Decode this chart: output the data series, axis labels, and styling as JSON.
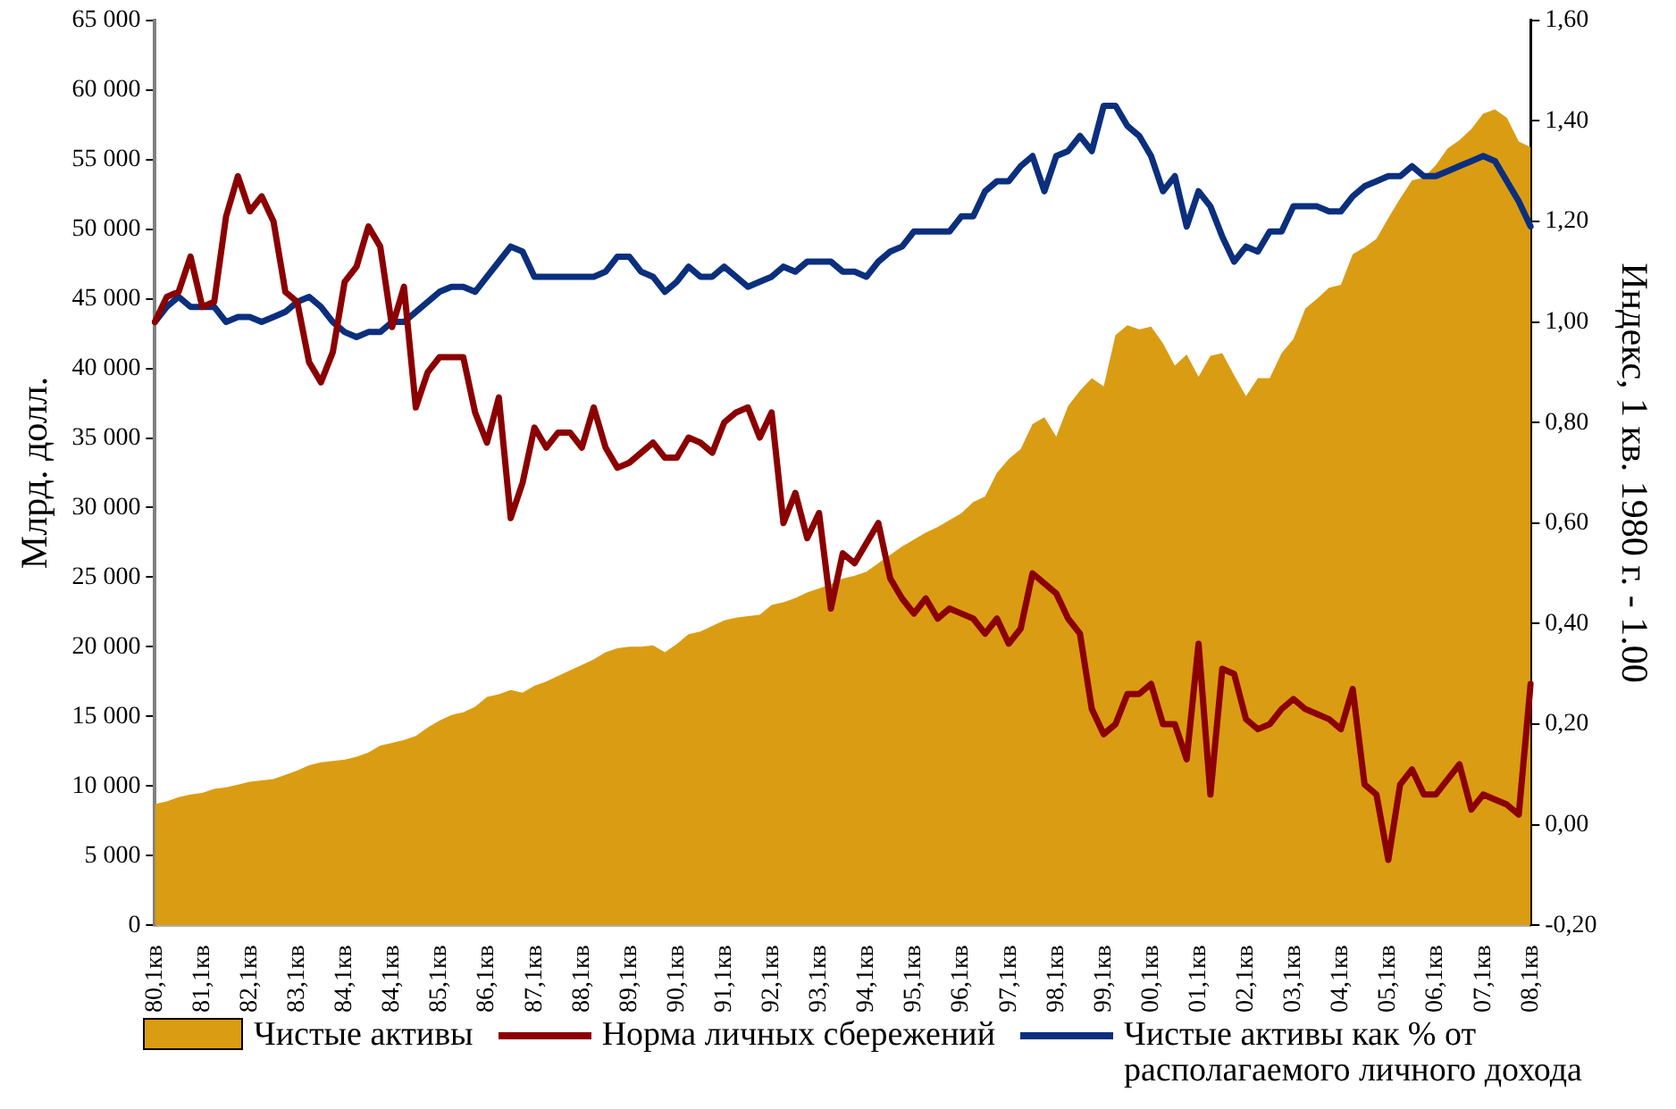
{
  "chart_data": {
    "type": "area",
    "ylabel": "Млрд. долл.",
    "y2label": "Индекс, 1 кв. 1980 г. - 1.00",
    "categories": [
      "80,1кв",
      null,
      null,
      null,
      "81,1кв",
      null,
      null,
      null,
      "82,1кв",
      null,
      null,
      null,
      "83,1кв",
      null,
      null,
      null,
      "84,1кв",
      null,
      null,
      null,
      "84,1кв",
      null,
      null,
      null,
      "85,1кв",
      null,
      null,
      null,
      "86,1кв",
      null,
      null,
      null,
      "87,1кв",
      null,
      null,
      null,
      "88,1кв",
      null,
      null,
      null,
      "89,1кв",
      null,
      null,
      null,
      "90,1кв",
      null,
      null,
      null,
      "91,1кв",
      null,
      null,
      null,
      "92,1кв",
      null,
      null,
      null,
      "93,1кв",
      null,
      null,
      null,
      "94,1кв",
      null,
      null,
      null,
      "95,1кв",
      null,
      null,
      null,
      "96,1кв",
      null,
      null,
      null,
      "97,1кв",
      null,
      null,
      null,
      "98,1кв",
      null,
      null,
      null,
      "99,1кв",
      null,
      null,
      null,
      "00,1кв",
      null,
      null,
      null,
      "01,1кв",
      null,
      null,
      null,
      "02,1кв",
      null,
      null,
      null,
      "03,1кв",
      null,
      null,
      null,
      "04,1кв",
      null,
      null,
      null,
      "05,1кв",
      null,
      null,
      null,
      "06,1кв",
      null,
      null,
      null,
      "07,1кв",
      null,
      null,
      null,
      "08,1кв"
    ],
    "series": [
      {
        "name": "Чистые активы",
        "color": "#da9c12",
        "values": [
          8700,
          8900,
          9200,
          9400,
          9500,
          9800,
          9900,
          10100,
          10300,
          10400,
          10500,
          10800,
          11100,
          11500,
          11700,
          11800,
          11900,
          12100,
          12400,
          12900,
          13100,
          13300,
          13600,
          14200,
          14700,
          15100,
          15300,
          15700,
          16400,
          16600,
          16900,
          16700,
          17200,
          17500,
          17900,
          18300,
          18700,
          19100,
          19600,
          19900,
          20000,
          20000,
          20100,
          19600,
          20200,
          20900,
          21100,
          21500,
          21900,
          22100,
          22200,
          22300,
          23000,
          23200,
          23500,
          23900,
          24200,
          24500,
          24900,
          25100,
          25400,
          26000,
          26600,
          27200,
          27700,
          28200,
          28600,
          29100,
          29600,
          30400,
          30800,
          32500,
          33500,
          34200,
          36000,
          36500,
          35100,
          37300,
          38400,
          39300,
          38700,
          42400,
          43100,
          42800,
          43000,
          41800,
          40200,
          41000,
          39400,
          40900,
          41100,
          39500,
          38000,
          39300,
          39300,
          41100,
          42100,
          44300,
          45000,
          45800,
          46000,
          48200,
          48700,
          49300,
          50800,
          52200,
          53500,
          53700,
          54600,
          55800,
          56400,
          57200,
          58300,
          58600,
          58000,
          56300,
          55900
        ]
      },
      {
        "name": "Норма личных сбережений",
        "type": "line",
        "axis": "y2",
        "color": "#8b0000",
        "values": [
          1.0,
          1.05,
          1.06,
          1.13,
          1.03,
          1.04,
          1.21,
          1.29,
          1.22,
          1.25,
          1.2,
          1.06,
          1.04,
          0.92,
          0.88,
          0.94,
          1.08,
          1.11,
          1.19,
          1.15,
          0.99,
          1.07,
          0.83,
          0.9,
          0.93,
          0.93,
          0.93,
          0.82,
          0.76,
          0.85,
          0.61,
          0.68,
          0.79,
          0.75,
          0.78,
          0.78,
          0.75,
          0.83,
          0.75,
          0.71,
          0.72,
          0.74,
          0.76,
          0.73,
          0.73,
          0.77,
          0.76,
          0.74,
          0.8,
          0.82,
          0.83,
          0.77,
          0.82,
          0.6,
          0.66,
          0.57,
          0.62,
          0.43,
          0.54,
          0.52,
          0.56,
          0.6,
          0.49,
          0.45,
          0.42,
          0.45,
          0.41,
          0.43,
          0.42,
          0.41,
          0.38,
          0.41,
          0.36,
          0.39,
          0.5,
          0.48,
          0.46,
          0.41,
          0.38,
          0.23,
          0.18,
          0.2,
          0.26,
          0.26,
          0.28,
          0.2,
          0.2,
          0.13,
          0.36,
          0.06,
          0.31,
          0.3,
          0.21,
          0.19,
          0.2,
          0.23,
          0.25,
          0.23,
          0.22,
          0.21,
          0.19,
          0.27,
          0.08,
          0.06,
          -0.07,
          0.08,
          0.11,
          0.06,
          0.06,
          0.09,
          0.12,
          0.03,
          0.06,
          0.05,
          0.04,
          0.02,
          0.28
        ]
      },
      {
        "name": "Чистые активы как % от располагаемого личного дохода",
        "type": "line",
        "axis": "y2",
        "color": "#0b2f7d",
        "values": [
          1.0,
          1.03,
          1.05,
          1.03,
          1.03,
          1.03,
          1.0,
          1.01,
          1.01,
          1.0,
          1.01,
          1.02,
          1.04,
          1.05,
          1.03,
          1.0,
          0.98,
          0.97,
          0.98,
          0.98,
          1.0,
          1.0,
          1.02,
          1.04,
          1.06,
          1.07,
          1.07,
          1.06,
          1.09,
          1.12,
          1.15,
          1.14,
          1.09,
          1.09,
          1.09,
          1.09,
          1.09,
          1.09,
          1.1,
          1.13,
          1.13,
          1.1,
          1.09,
          1.06,
          1.08,
          1.11,
          1.09,
          1.09,
          1.11,
          1.09,
          1.07,
          1.08,
          1.09,
          1.11,
          1.1,
          1.12,
          1.12,
          1.12,
          1.1,
          1.1,
          1.09,
          1.12,
          1.14,
          1.15,
          1.18,
          1.18,
          1.18,
          1.18,
          1.21,
          1.21,
          1.26,
          1.28,
          1.28,
          1.31,
          1.33,
          1.26,
          1.33,
          1.34,
          1.37,
          1.34,
          1.43,
          1.43,
          1.39,
          1.37,
          1.33,
          1.26,
          1.29,
          1.19,
          1.26,
          1.23,
          1.17,
          1.12,
          1.15,
          1.14,
          1.18,
          1.18,
          1.23,
          1.23,
          1.23,
          1.22,
          1.22,
          1.25,
          1.27,
          1.28,
          1.29,
          1.29,
          1.31,
          1.29,
          1.29,
          1.3,
          1.31,
          1.32,
          1.33,
          1.32,
          1.28,
          1.24,
          1.19
        ]
      }
    ],
    "ylim": [
      0,
      65000
    ],
    "yticks": [
      0,
      {
        "value": 5000,
        "label": "5 000"
      },
      {
        "value": 10000,
        "label": "10 000"
      },
      {
        "value": 15000,
        "label": "15 000"
      },
      {
        "value": 20000,
        "label": "20 000"
      },
      {
        "value": 25000,
        "label": "25 000"
      },
      {
        "value": 30000,
        "label": "30 000"
      },
      {
        "value": 35000,
        "label": "35 000"
      },
      {
        "value": 40000,
        "label": "40 000"
      },
      {
        "value": 45000,
        "label": "45 000"
      },
      {
        "value": 50000,
        "label": "50 000"
      },
      {
        "value": 55000,
        "label": "55 000"
      },
      {
        "value": 60000,
        "label": "60 000"
      },
      {
        "value": 65000,
        "label": "65 000"
      }
    ],
    "y2lim": [
      -0.2,
      1.6
    ],
    "y2ticks": [
      {
        "value": -0.2,
        "label": "-0,20"
      },
      {
        "value": 0,
        "label": "0,00"
      },
      {
        "value": 0.2,
        "label": "0,20"
      },
      {
        "value": 0.4,
        "label": "0,40"
      },
      {
        "value": 0.6,
        "label": "0,60"
      },
      {
        "value": 0.8,
        "label": "0,80"
      },
      {
        "value": 1,
        "label": "1,00"
      },
      {
        "value": 1.2,
        "label": "1,20"
      },
      {
        "value": 1.4,
        "label": "1,40"
      },
      {
        "value": 1.6,
        "label": "1,60"
      }
    ],
    "grid": false,
    "legend": "bottom",
    "marker": "none",
    "line_style": "solid"
  }
}
